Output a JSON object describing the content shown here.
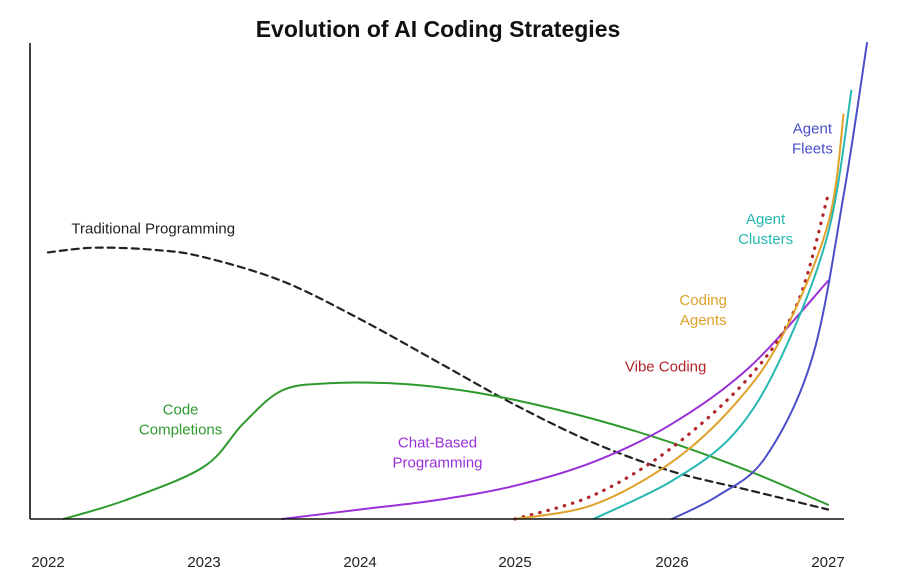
{
  "chart_data": {
    "type": "line",
    "title": "Evolution of AI Coding Strategies",
    "xlabel": "",
    "ylabel": "",
    "x_ticks": [
      "2022",
      "2023",
      "2024",
      "2025",
      "2026",
      "2027"
    ],
    "xlim": [
      2022,
      2027.4
    ],
    "ylim": [
      0,
      100
    ],
    "grid": false,
    "legend": "none (series labeled directly on the chart)",
    "series": [
      {
        "name": "Traditional Programming",
        "color": "#222222",
        "style": "dashed",
        "points": [
          [
            2022.0,
            56
          ],
          [
            2022.3,
            57
          ],
          [
            2022.7,
            56.5
          ],
          [
            2023.0,
            55
          ],
          [
            2023.5,
            50
          ],
          [
            2024.0,
            42
          ],
          [
            2024.5,
            33
          ],
          [
            2025.0,
            24
          ],
          [
            2025.5,
            16
          ],
          [
            2026.0,
            10
          ],
          [
            2026.5,
            6
          ],
          [
            2027.0,
            2
          ]
        ]
      },
      {
        "name": "Code Completions",
        "color": "#2e9a2e",
        "style": "solid",
        "points": [
          [
            2022.1,
            0
          ],
          [
            2022.5,
            4
          ],
          [
            2023.0,
            11
          ],
          [
            2023.25,
            20
          ],
          [
            2023.5,
            27
          ],
          [
            2023.8,
            28.5
          ],
          [
            2024.2,
            28.5
          ],
          [
            2024.6,
            27.3
          ],
          [
            2025.0,
            25
          ],
          [
            2025.5,
            21
          ],
          [
            2026.0,
            16
          ],
          [
            2026.5,
            10
          ],
          [
            2027.0,
            3
          ]
        ]
      },
      {
        "name": "Chat-Based Programming",
        "color": "#9b30d8",
        "style": "solid",
        "points": [
          [
            2023.5,
            0
          ],
          [
            2024.0,
            2
          ],
          [
            2024.5,
            4
          ],
          [
            2025.0,
            7
          ],
          [
            2025.5,
            12
          ],
          [
            2026.0,
            20
          ],
          [
            2026.5,
            32
          ],
          [
            2027.0,
            50
          ]
        ]
      },
      {
        "name": "Vibe Coding",
        "color": "#b3242a",
        "style": "dotted",
        "points": [
          [
            2025.0,
            0
          ],
          [
            2025.5,
            5
          ],
          [
            2026.0,
            15
          ],
          [
            2026.5,
            30
          ],
          [
            2026.8,
            45
          ],
          [
            2027.0,
            68
          ]
        ]
      },
      {
        "name": "Coding Agents",
        "color": "#e0a12a",
        "style": "solid",
        "points": [
          [
            2025.0,
            0
          ],
          [
            2025.5,
            3
          ],
          [
            2026.0,
            12
          ],
          [
            2026.4,
            24
          ],
          [
            2026.7,
            38
          ],
          [
            2027.0,
            62
          ],
          [
            2027.1,
            85
          ]
        ]
      },
      {
        "name": "Agent Clusters",
        "color": "#27b8b2",
        "style": "solid",
        "points": [
          [
            2025.5,
            0
          ],
          [
            2026.0,
            8
          ],
          [
            2026.4,
            18
          ],
          [
            2026.7,
            34
          ],
          [
            2027.0,
            60
          ],
          [
            2027.15,
            90
          ]
        ]
      },
      {
        "name": "Agent Fleets",
        "color": "#4a4ec8",
        "style": "solid",
        "points": [
          [
            2026.0,
            0
          ],
          [
            2026.3,
            5
          ],
          [
            2026.6,
            13
          ],
          [
            2026.9,
            34
          ],
          [
            2027.1,
            68
          ],
          [
            2027.25,
            100
          ]
        ]
      }
    ],
    "annotations": [
      {
        "text": [
          "Traditional Programming"
        ],
        "color": "#222222",
        "at": [
          2022.15,
          60
        ]
      },
      {
        "text": [
          "Code",
          "Completions"
        ],
        "color": "#2e9a2e",
        "at": [
          2022.85,
          22
        ]
      },
      {
        "text": [
          "Chat-Based",
          "Programming"
        ],
        "color": "#9b30d8",
        "at": [
          2024.5,
          15
        ]
      },
      {
        "text": [
          "Vibe Coding"
        ],
        "color": "#b3242a",
        "at": [
          2025.7,
          31
        ]
      },
      {
        "text": [
          "Coding",
          "Agents"
        ],
        "color": "#e0a12a",
        "at": [
          2026.2,
          45
        ]
      },
      {
        "text": [
          "Agent",
          "Clusters"
        ],
        "color": "#27b8b2",
        "at": [
          2026.6,
          62
        ]
      },
      {
        "text": [
          "Agent",
          "Fleets"
        ],
        "color": "#4a4ec8",
        "at": [
          2026.9,
          81
        ]
      }
    ]
  }
}
